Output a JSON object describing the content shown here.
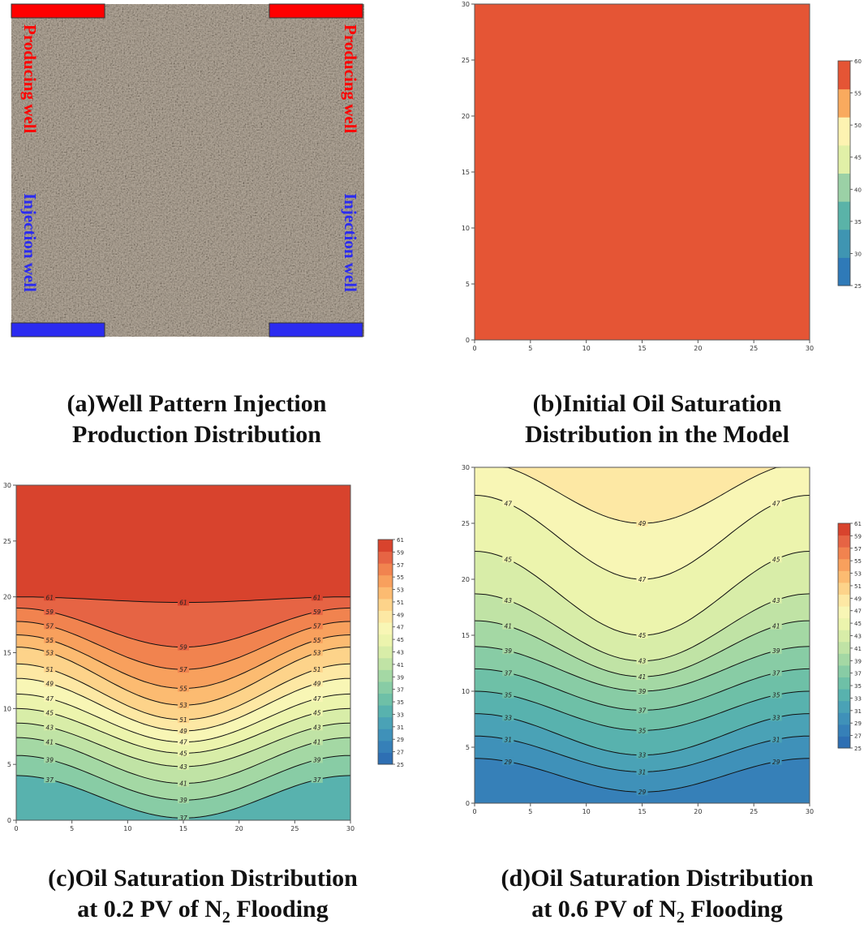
{
  "panel_a": {
    "producing_label": "Producing well",
    "injection_label": "Injection well",
    "colors": {
      "producing": "#ff0000",
      "injection": "#2b2bf0",
      "rock": "#a79d91"
    },
    "caption_line1": "(a)Well Pattern Injection",
    "caption_line2": "Production Distribution"
  },
  "panel_b": {
    "caption_line1": "(b)Initial Oil Saturation",
    "caption_line2": "Distribution in the Model"
  },
  "panel_c": {
    "caption_line1": "(c)Oil Saturation Distribution",
    "caption_line2_prefix": "at 0.2 PV of N",
    "caption_sub": "2",
    "caption_line2_suffix": " Flooding"
  },
  "panel_d": {
    "caption_line1": "(d)Oil Saturation Distribution",
    "caption_line2_prefix": "at 0.6 PV of N",
    "caption_sub": "2",
    "caption_line2_suffix": " Flooding"
  },
  "chart_data": [
    {
      "id": "b",
      "type": "heatmap",
      "title": "Initial Oil Saturation Distribution in the Model",
      "xlim": [
        0,
        30
      ],
      "ylim": [
        0,
        30
      ],
      "x_ticks": [
        "0",
        "5",
        "10",
        "15",
        "20",
        "25",
        "30"
      ],
      "y_ticks": [
        "0",
        "5",
        "10",
        "15",
        "20",
        "25",
        "30"
      ],
      "fill_value": 62,
      "fill_color": "#e55535",
      "colorbar_ticks": [
        "25",
        "30",
        "35",
        "40",
        "45",
        "50",
        "55",
        "60"
      ],
      "colorbar_colors": [
        "#2f7ab8",
        "#3f95b2",
        "#5ab3a8",
        "#9bd1a6",
        "#e1f0a7",
        "#fdf3b1",
        "#f9aa5e",
        "#e55535"
      ]
    },
    {
      "id": "c",
      "type": "contour",
      "title": "Oil Saturation Distribution at 0.2 PV of N2 Flooding",
      "xlim": [
        0,
        30
      ],
      "ylim": [
        0,
        30
      ],
      "x_ticks": [
        "0",
        "5",
        "10",
        "15",
        "20",
        "25",
        "30"
      ],
      "y_ticks": [
        "0",
        "5",
        "10",
        "15",
        "20",
        "25",
        "30"
      ],
      "colorbar_ticks": [
        "25",
        "27",
        "29",
        "31",
        "33",
        "35",
        "37",
        "39",
        "41",
        "43",
        "45",
        "47",
        "49",
        "51",
        "53",
        "55",
        "57",
        "59",
        "61"
      ],
      "colorbar_colors": [
        "#2e6fb3",
        "#3680b8",
        "#3f91b9",
        "#4aa2b6",
        "#58b2ae",
        "#6ec0a7",
        "#88cca5",
        "#a4d8a4",
        "#c0e3a5",
        "#d8eda8",
        "#ecf4ad",
        "#f8f6b5",
        "#fde8a4",
        "#fdd38a",
        "#fcbb71",
        "#f8a05d",
        "#f1834f",
        "#e66444",
        "#d8432d"
      ],
      "contour_levels": [
        {
          "level": "37",
          "edge_y": 4,
          "center_y": 0.2
        },
        {
          "level": "39",
          "edge_y": 5.8,
          "center_y": 1.8
        },
        {
          "level": "41",
          "edge_y": 7.4,
          "center_y": 3.3
        },
        {
          "level": "43",
          "edge_y": 8.7,
          "center_y": 4.8
        },
        {
          "level": "45",
          "edge_y": 10.0,
          "center_y": 6.0
        },
        {
          "level": "47",
          "edge_y": 11.3,
          "center_y": 7.0
        },
        {
          "level": "49",
          "edge_y": 12.7,
          "center_y": 8.0
        },
        {
          "level": "51",
          "edge_y": 14.0,
          "center_y": 9.0
        },
        {
          "level": "53",
          "edge_y": 15.5,
          "center_y": 10.3
        },
        {
          "level": "55",
          "edge_y": 16.6,
          "center_y": 11.8
        },
        {
          "level": "57",
          "edge_y": 17.8,
          "center_y": 13.5
        },
        {
          "level": "59",
          "edge_y": 19.0,
          "center_y": 15.5
        },
        {
          "level": "61",
          "edge_y": 20.0,
          "center_y": 19.5
        }
      ]
    },
    {
      "id": "d",
      "type": "contour",
      "title": "Oil Saturation Distribution at 0.6 PV of N2 Flooding",
      "xlim": [
        0,
        30
      ],
      "ylim": [
        0,
        30
      ],
      "x_ticks": [
        "0",
        "5",
        "10",
        "15",
        "20",
        "25",
        "30"
      ],
      "y_ticks": [
        "0",
        "5",
        "10",
        "15",
        "20",
        "25",
        "30"
      ],
      "colorbar_ticks": [
        "25",
        "27",
        "29",
        "31",
        "33",
        "35",
        "37",
        "39",
        "41",
        "43",
        "45",
        "47",
        "49",
        "51",
        "53",
        "55",
        "57",
        "59",
        "61"
      ],
      "colorbar_colors": [
        "#2e6fb3",
        "#3680b8",
        "#3f91b9",
        "#4aa2b6",
        "#58b2ae",
        "#6ec0a7",
        "#88cca5",
        "#a4d8a4",
        "#c0e3a5",
        "#d8eda8",
        "#ecf4ad",
        "#f8f6b5",
        "#fde8a4",
        "#fdd38a",
        "#fcbb71",
        "#f8a05d",
        "#f1834f",
        "#e66444",
        "#d8432d"
      ],
      "contour_levels": [
        {
          "level": "29",
          "edge_y": 4.0,
          "center_y": 1.0
        },
        {
          "level": "31",
          "edge_y": 6.0,
          "center_y": 2.8
        },
        {
          "level": "33",
          "edge_y": 8.0,
          "center_y": 4.3
        },
        {
          "level": "35",
          "edge_y": 10.0,
          "center_y": 6.5
        },
        {
          "level": "37",
          "edge_y": 12.0,
          "center_y": 8.3
        },
        {
          "level": "39",
          "edge_y": 14.0,
          "center_y": 10.0
        },
        {
          "level": "41",
          "edge_y": 16.3,
          "center_y": 11.3
        },
        {
          "level": "43",
          "edge_y": 18.7,
          "center_y": 12.7
        },
        {
          "level": "45",
          "edge_y": 22.5,
          "center_y": 15.0
        },
        {
          "level": "47",
          "edge_y": 27.5,
          "center_y": 20.0
        },
        {
          "level": "49",
          "edge_y": 30.5,
          "center_y": 25.0
        }
      ]
    }
  ]
}
